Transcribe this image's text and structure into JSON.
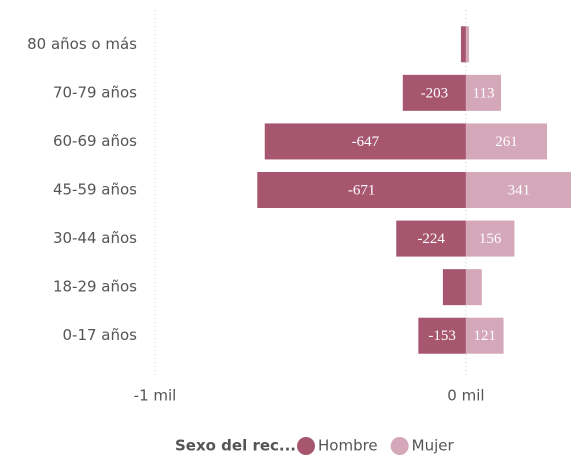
{
  "chart_data": {
    "type": "bar",
    "orientation": "horizontal",
    "stacked": "diverging",
    "categories": [
      "80 años o más",
      "70-79 años",
      "60-69 años",
      "45-59 años",
      "30-44 años",
      "18-29 años",
      "0-17 años"
    ],
    "series": [
      {
        "name": "Hombre",
        "color": "#a6566f",
        "values": [
          -16,
          -203,
          -647,
          -671,
          -224,
          -74,
          -153
        ]
      },
      {
        "name": "Mujer",
        "color": "#d4a7b9",
        "values": [
          10,
          113,
          261,
          341,
          156,
          51,
          121
        ]
      }
    ],
    "xlim": [
      -1000,
      338
    ],
    "xticks": [
      {
        "value": -1000,
        "label": "-1 mil"
      },
      {
        "value": 0,
        "label": "0 mil"
      }
    ],
    "grid": true,
    "legend": {
      "title": "Sexo del rec...",
      "position": "bottom"
    }
  }
}
